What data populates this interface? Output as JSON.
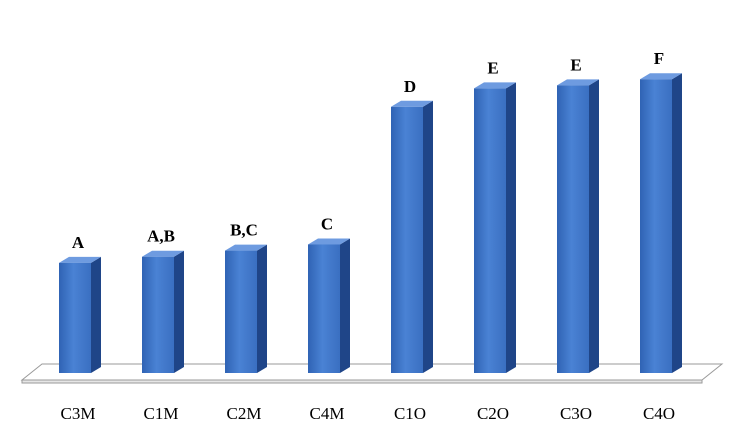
{
  "chart_data": {
    "type": "bar",
    "categories": [
      "C3M",
      "C1M",
      "C2M",
      "C4M",
      "C1O",
      "C2O",
      "C3O",
      "C4O"
    ],
    "values": [
      36,
      38,
      40,
      42,
      87,
      93,
      94,
      96
    ],
    "data_labels": [
      "A",
      "A,B",
      "B,C",
      "C",
      "D",
      "E",
      "E",
      "F"
    ],
    "title": "",
    "xlabel": "",
    "ylabel": "",
    "ylim": [
      0,
      100
    ],
    "grid": false,
    "legend": "none",
    "style": "3d",
    "colors": {
      "bar_front": "#3d74c7",
      "bar_side": "#1f4588",
      "bar_top": "#6e9be0",
      "floor": "#ffffff",
      "floor_edge": "#9a9a9a"
    }
  }
}
